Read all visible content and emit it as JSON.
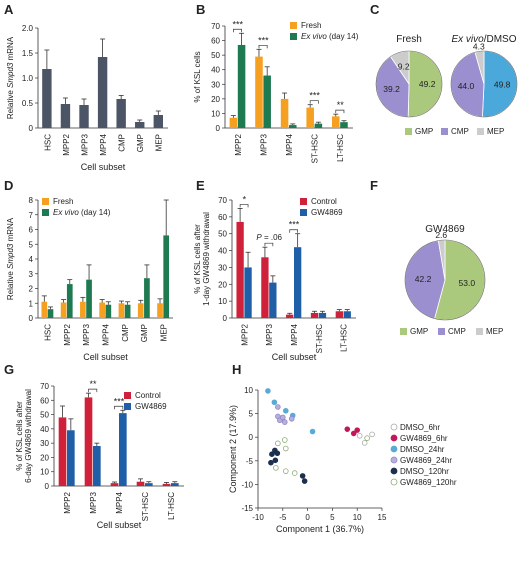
{
  "chart_data": [
    {
      "panel": "A",
      "type": "bar",
      "categories": [
        "HSC",
        "MPP2",
        "MPP3",
        "MPP4",
        "CMP",
        "GMP",
        "MEP"
      ],
      "values": [
        1.18,
        0.48,
        0.46,
        1.42,
        0.58,
        0.12,
        0.26
      ],
      "errors": [
        0.38,
        0.12,
        0.12,
        0.36,
        0.07,
        0.04,
        0.08
      ],
      "ylabel": "Relative Smpd3 mRNA",
      "xlabel": "Cell subset",
      "ylim": [
        0,
        2
      ],
      "yticks": [
        "0",
        "0.5",
        "1.0",
        "1.5",
        "2.0"
      ],
      "colors": [
        "#4b5565"
      ]
    },
    {
      "panel": "B",
      "type": "bar",
      "categories": [
        "MPP2",
        "MPP3",
        "MPP4",
        "ST-HSC",
        "LT-HSC"
      ],
      "series": [
        {
          "name": "Fresh",
          "values": [
            7,
            49,
            20,
            14,
            8
          ],
          "errors": [
            1.5,
            5,
            4,
            2,
            1.5
          ]
        },
        {
          "name": "Ex vivo (day 14)",
          "values": [
            57,
            36,
            2,
            3,
            4
          ],
          "errors": [
            8,
            6,
            0.8,
            1,
            1
          ]
        }
      ],
      "significance": [
        "***",
        "***",
        "",
        "***",
        "**"
      ],
      "ylabel": "% of KSL cells",
      "xlabel": "",
      "ylim": [
        0,
        70
      ],
      "yticks": [
        "0",
        "10",
        "20",
        "30",
        "40",
        "50",
        "60",
        "70"
      ],
      "colors": [
        "#f5a021",
        "#1e7a50"
      ],
      "legend_position": "top-right"
    },
    {
      "panel": "C",
      "type": "pie",
      "pies": [
        {
          "title": "Fresh",
          "slices": [
            49.2,
            39.2,
            9.2
          ],
          "labels": [
            "49.2",
            "39.2",
            "9.2"
          ]
        },
        {
          "title": "Ex vivo/DMSO",
          "slices": [
            49.8,
            44.0,
            4.3
          ],
          "labels": [
            "49.8",
            "44.0",
            "4.3"
          ]
        }
      ],
      "legend": [
        "GMP",
        "CMP",
        "MEP"
      ],
      "colors_fresh": [
        "#aac97c",
        "#9b8fd0",
        "#cccccc"
      ],
      "colors_exvivo": [
        "#4aa8db",
        "#9b8fd0",
        "#cccccc"
      ]
    },
    {
      "panel": "D",
      "type": "bar",
      "categories": [
        "HSC",
        "MPP2",
        "MPP3",
        "MPP4",
        "CMP",
        "GMP",
        "MEP"
      ],
      "series": [
        {
          "name": "Fresh",
          "values": [
            1.1,
            1.05,
            1.1,
            1.05,
            1.0,
            1.0,
            1.0
          ],
          "errors": [
            0.4,
            0.2,
            0.3,
            0.2,
            0.15,
            0.2,
            0.3
          ]
        },
        {
          "name": "Ex vivo (day 14)",
          "values": [
            0.6,
            2.3,
            2.6,
            0.9,
            0.9,
            2.7,
            5.6
          ],
          "errors": [
            0.15,
            0.3,
            1.0,
            0.2,
            0.2,
            0.9,
            2.4
          ]
        }
      ],
      "ylabel": "Relative Smpd3 mRNA",
      "xlabel": "Cell subset",
      "ylim": [
        0,
        8
      ],
      "yticks": [
        "0",
        "1",
        "2",
        "3",
        "4",
        "5",
        "6",
        "7",
        "8"
      ],
      "colors": [
        "#f5a021",
        "#1e7a50"
      ],
      "legend_position": "top-left"
    },
    {
      "panel": "E",
      "type": "bar",
      "categories": [
        "MPP2",
        "MPP3",
        "MPP4",
        "ST-HSC",
        "LT-HSC"
      ],
      "series": [
        {
          "name": "Control",
          "values": [
            57,
            36,
            2,
            3,
            4
          ],
          "errors": [
            8,
            6,
            0.8,
            1,
            1
          ]
        },
        {
          "name": "GW4869",
          "values": [
            30,
            21,
            42,
            3,
            4
          ],
          "errors": [
            9,
            4,
            8,
            1,
            1
          ]
        }
      ],
      "significance": [
        "*",
        "P = .06",
        "***",
        "",
        ""
      ],
      "ylabel": "% of KSL cells after 1-day GW4869 withdrawal",
      "xlabel": "Cell subset",
      "ylim": [
        0,
        70
      ],
      "yticks": [
        "0",
        "10",
        "20",
        "30",
        "40",
        "50",
        "60",
        "70"
      ],
      "colors": [
        "#d0213a",
        "#1f5fa8"
      ],
      "legend_position": "top-right"
    },
    {
      "panel": "F",
      "type": "pie",
      "pies": [
        {
          "title": "GW4869",
          "slices": [
            53.0,
            42.2,
            2.6
          ],
          "labels": [
            "53.0",
            "42.2",
            "2.6"
          ]
        }
      ],
      "legend": [
        "GMP",
        "CMP",
        "MEP"
      ],
      "colors": [
        "#aac97c",
        "#9b8fd0",
        "#cccccc"
      ]
    },
    {
      "panel": "G",
      "type": "bar",
      "categories": [
        "MPP2",
        "MPP3",
        "MPP4",
        "ST-HSC",
        "LT-HSC"
      ],
      "series": [
        {
          "name": "Control",
          "values": [
            48,
            62,
            2,
            3,
            1.5
          ],
          "errors": [
            8,
            3,
            0.8,
            2,
            1
          ]
        },
        {
          "name": "GW4869",
          "values": [
            39,
            28,
            51,
            2,
            2
          ],
          "errors": [
            8,
            2,
            2,
            1,
            1
          ]
        }
      ],
      "significance": [
        "",
        "**",
        "***",
        "",
        ""
      ],
      "ylabel": "% of KSL cells after 6-day GW4869 withdrawal",
      "xlabel": "Cell subset",
      "ylim": [
        0,
        70
      ],
      "yticks": [
        "0",
        "10",
        "20",
        "30",
        "40",
        "50",
        "60",
        "70"
      ],
      "colors": [
        "#d0213a",
        "#1f5fa8"
      ],
      "legend_position": "top-right"
    },
    {
      "panel": "H",
      "type": "scatter",
      "xlabel": "Component 1 (36.7%)",
      "ylabel": "Component 2 (17.9%)",
      "xlim": [
        -10,
        15
      ],
      "ylim": [
        -15,
        10
      ],
      "xticks": [
        "-10",
        "-5",
        "0",
        "5",
        "10",
        "15"
      ],
      "yticks": [
        "-15",
        "-10",
        "-5",
        "0",
        "5",
        "10"
      ],
      "series": [
        {
          "name": "DMSO_6hr",
          "color": "#ffffff",
          "stroke": "#aaaaaa",
          "points": [
            [
              10.5,
              0.3
            ],
            [
              11.5,
              -1.2
            ],
            [
              13,
              0.6
            ]
          ]
        },
        {
          "name": "GW4869_6hr",
          "color": "#c2185b",
          "stroke": "#c2185b",
          "points": [
            [
              8,
              1.7
            ],
            [
              9.3,
              0.8
            ],
            [
              10,
              1.5
            ]
          ]
        },
        {
          "name": "DMSO_24hr",
          "color": "#5aa9d6",
          "stroke": "#5aa9d6",
          "points": [
            [
              -8,
              9.8
            ],
            [
              -6.7,
              7.4
            ],
            [
              -4.4,
              5.6
            ],
            [
              -3,
              4.6
            ],
            [
              1,
              1.2
            ]
          ]
        },
        {
          "name": "GW4869_24hr",
          "color": "#b8b0dc",
          "stroke": "#8f86c6",
          "points": [
            [
              -6,
              6.4
            ],
            [
              -6,
              4.4
            ],
            [
              -5.6,
              3.6
            ],
            [
              -5,
              4.2
            ],
            [
              -4.6,
              3.2
            ],
            [
              -3.2,
              3.9
            ]
          ]
        },
        {
          "name": "DMSO_120hr",
          "color": "#1b2f4e",
          "stroke": "#1b2f4e",
          "points": [
            [
              -7.2,
              -3.6
            ],
            [
              -6.6,
              -2.8
            ],
            [
              -6.1,
              -3.4
            ],
            [
              -6.5,
              -4.9
            ],
            [
              -7.4,
              -5.4
            ],
            [
              -1,
              -8.2
            ],
            [
              -0.6,
              -9.3
            ]
          ]
        },
        {
          "name": "GW4869_120hr",
          "color": "#ffffff",
          "stroke": "#8bab73",
          "points": [
            [
              -6,
              -1.3
            ],
            [
              -4.6,
              -0.6
            ],
            [
              -4.4,
              -2.4
            ],
            [
              -6.4,
              -6.5
            ],
            [
              -4.4,
              -7.2
            ],
            [
              -2.6,
              -7.6
            ],
            [
              12,
              -0.2
            ]
          ]
        }
      ],
      "legend_position": "right"
    }
  ]
}
